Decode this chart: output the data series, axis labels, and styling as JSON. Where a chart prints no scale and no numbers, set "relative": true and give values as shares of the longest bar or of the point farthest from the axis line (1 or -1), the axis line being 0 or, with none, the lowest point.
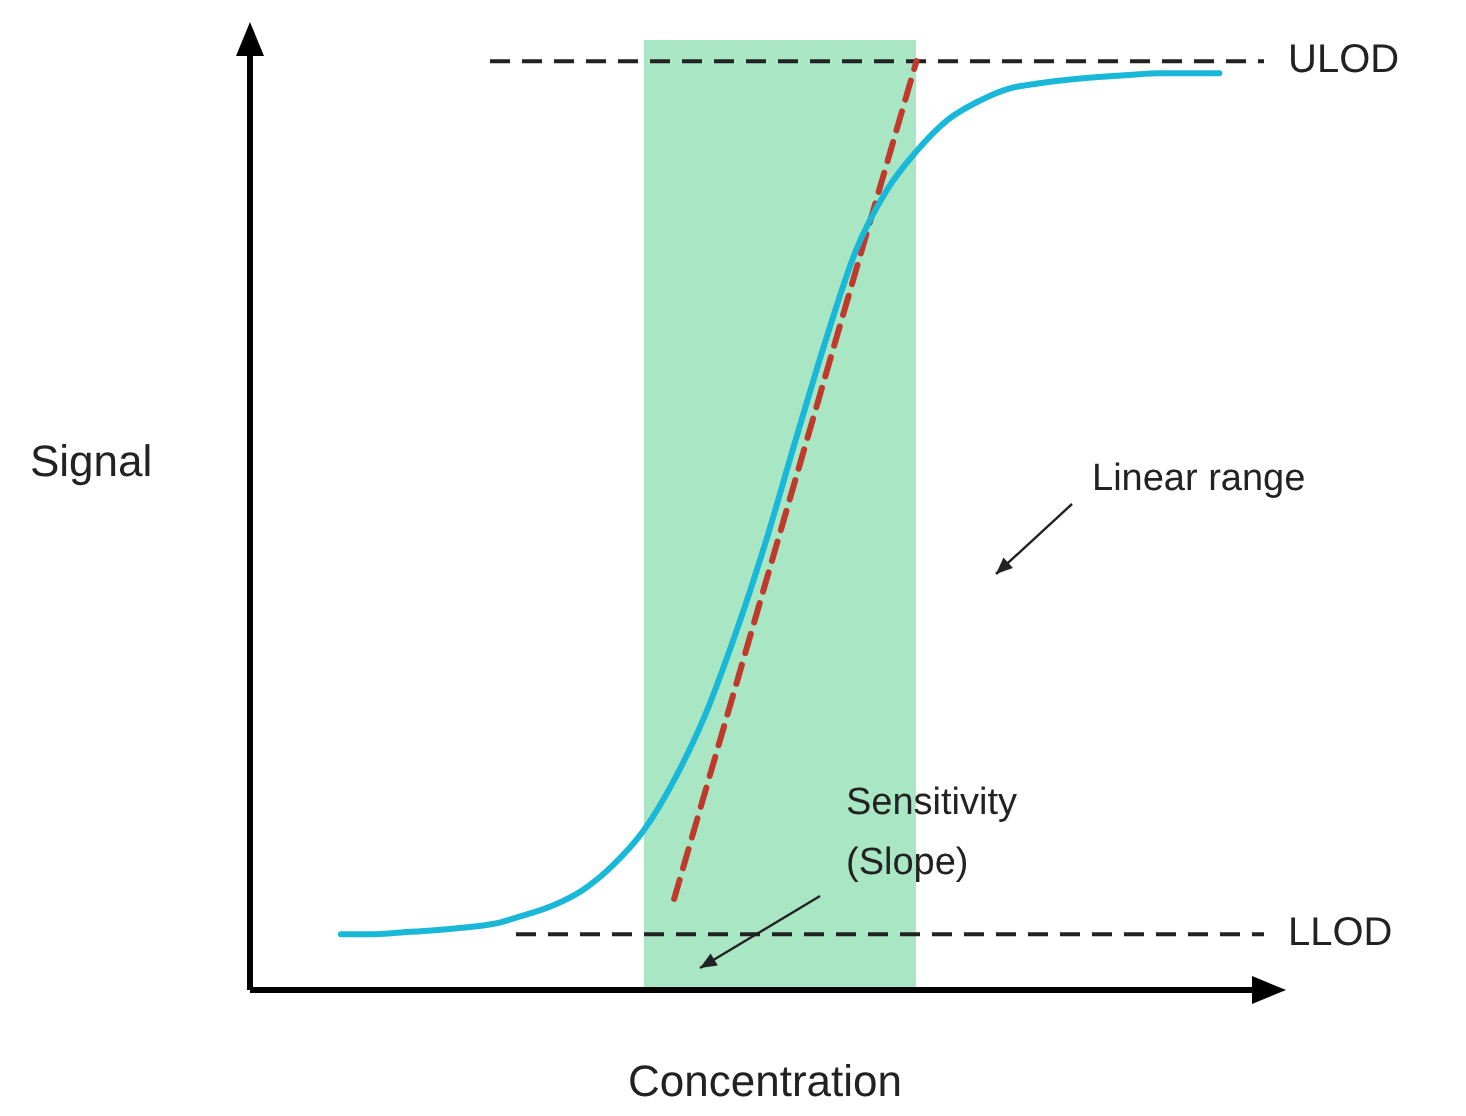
{
  "chart_data": {
    "type": "line",
    "relative": true,
    "xlabel": "Concentration",
    "ylabel": "Signal",
    "categories": [
      null,
      null,
      null,
      null,
      null,
      null,
      null,
      null,
      null,
      null,
      null,
      null,
      null,
      null,
      null,
      null,
      null,
      null,
      null,
      null,
      null,
      null,
      null,
      null,
      null,
      null,
      null,
      null,
      null,
      null,
      null,
      null,
      null,
      null,
      null
    ],
    "series": [
      {
        "color": "#1ab8d8",
        "values": [
          null,
          null,
          null,
          0.06,
          0.06,
          0.062,
          0.064,
          0.067,
          0.071,
          0.08,
          0.091,
          0.108,
          0.135,
          0.172,
          0.226,
          0.294,
          0.381,
          0.48,
          0.591,
          0.699,
          0.796,
          0.86,
          0.903,
          0.936,
          0.956,
          0.97,
          0.976,
          0.98,
          0.983,
          0.985,
          0.987,
          0.987,
          0.987,
          null,
          null
        ]
      },
      {
        "color": "#c0392b",
        "line_style": "dashed",
        "values": [
          null,
          null,
          null,
          null,
          null,
          null,
          null,
          null,
          null,
          null,
          null,
          null,
          null,
          null,
          0.098,
          null,
          null,
          null,
          null,
          null,
          null,
          null,
          1.0,
          null,
          null,
          null,
          null,
          null,
          null,
          null,
          null,
          null,
          null,
          null,
          null
        ]
      }
    ],
    "ref_lines": [
      {
        "axis": "y",
        "value": 1.0,
        "label": "ULOD",
        "color": "#222222",
        "line_style": "dashed"
      },
      {
        "axis": "y",
        "value": 0.06,
        "label": "LLOD",
        "color": "#222222",
        "line_style": "dashed"
      }
    ],
    "annotations": [
      "Linear range",
      "Sensitivity (Slope)"
    ],
    "legend": false,
    "marker": "none"
  }
}
